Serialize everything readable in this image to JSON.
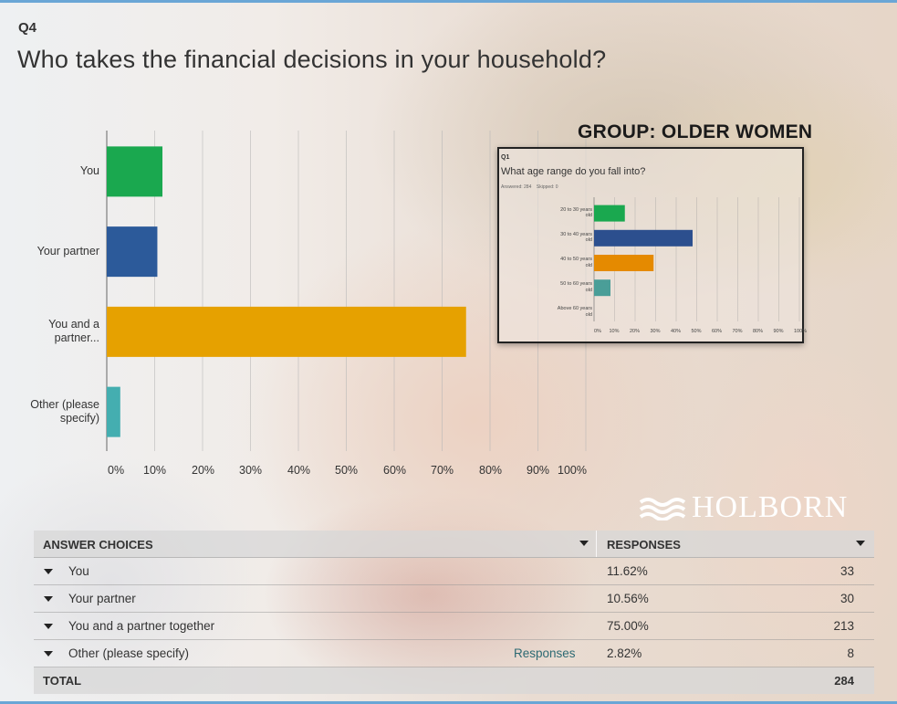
{
  "question_number": "Q4",
  "question_title": "Who takes the financial decisions in your household?",
  "chart_data": [
    {
      "type": "bar",
      "orientation": "horizontal",
      "categories": [
        "You",
        "Your partner",
        "You and a partner...",
        "Other (please specify)"
      ],
      "values": [
        11.62,
        10.56,
        75.0,
        2.82
      ],
      "colors": [
        "#1aa84f",
        "#2c5a9a",
        "#e6a100",
        "#44aeb0"
      ],
      "xlim": [
        0,
        100
      ],
      "x_ticks": [
        "0%",
        "10%",
        "20%",
        "30%",
        "40%",
        "50%",
        "60%",
        "70%",
        "80%",
        "90%",
        "100%"
      ],
      "grid": true
    },
    {
      "type": "bar",
      "orientation": "horizontal",
      "question_number": "Q1",
      "title": "What age range do you fall into?",
      "answered_text": "Answered: 284",
      "skipped_text": "Skipped: 0",
      "categories": [
        "20 to 30 years old",
        "30 to 40 years old",
        "40 to 50 years old",
        "50 to 60 years old",
        "Above 60 years old"
      ],
      "values": [
        15,
        48,
        29,
        8,
        0
      ],
      "colors": [
        "#1aa84f",
        "#2c4f8e",
        "#e58a00",
        "#4a9e98",
        "#888888"
      ],
      "xlim": [
        0,
        100
      ],
      "x_ticks": [
        "0%",
        "10%",
        "20%",
        "30%",
        "40%",
        "50%",
        "60%",
        "70%",
        "80%",
        "90%",
        "100%"
      ],
      "grid": true
    }
  ],
  "group_label": "GROUP: OLDER WOMEN",
  "logo_text": "HOLBORN",
  "table": {
    "header_answer": "ANSWER CHOICES",
    "header_responses": "RESPONSES",
    "rows": [
      {
        "label": "You",
        "percent": "11.62%",
        "count": "33"
      },
      {
        "label": "Your partner",
        "percent": "10.56%",
        "count": "30"
      },
      {
        "label": "You and a partner together",
        "percent": "75.00%",
        "count": "213"
      },
      {
        "label": "Other (please specify)",
        "link": "Responses",
        "percent": "2.82%",
        "count": "8"
      }
    ],
    "total_label": "TOTAL",
    "total_count": "284"
  },
  "icons": [
    "caret-down-icon",
    "holborn-waves-icon"
  ]
}
